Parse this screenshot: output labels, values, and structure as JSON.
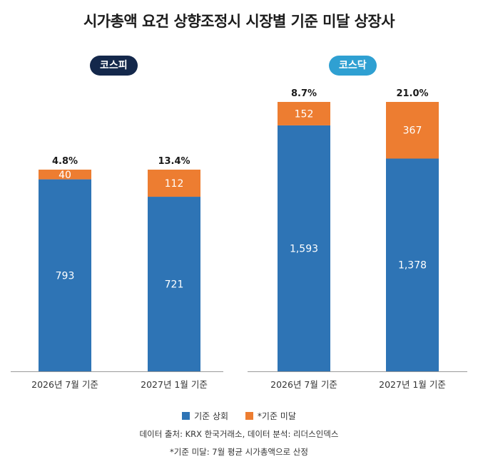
{
  "title": "시가총액 요건 상향조정시 시장별 기준 미달 상장사",
  "colors": {
    "above": "#2e74b5",
    "below": "#ed7d31",
    "kospi_pill": "#14284b",
    "kosdaq_pill": "#2fa0d2"
  },
  "chart_data": [
    {
      "type": "bar",
      "stacked": true,
      "market": "코스피",
      "categories": [
        "2026년 7월 기준",
        "2027년 1월 기준"
      ],
      "series": [
        {
          "name": "기준 상회",
          "values": [
            793,
            721
          ],
          "labels": [
            "793",
            "721"
          ]
        },
        {
          "name": "*기준 미달",
          "values": [
            40,
            112
          ],
          "labels": [
            "40",
            "112"
          ]
        }
      ],
      "totals_pct": [
        "4.8%",
        "13.4%"
      ]
    },
    {
      "type": "bar",
      "stacked": true,
      "market": "코스닥",
      "categories": [
        "2026년 7월 기준",
        "2027년 1월 기준"
      ],
      "series": [
        {
          "name": "기준 상회",
          "values": [
            1593,
            1378
          ],
          "labels": [
            "1,593",
            "1,378"
          ]
        },
        {
          "name": "*기준 미달",
          "values": [
            152,
            367
          ],
          "labels": [
            "152",
            "367"
          ]
        }
      ],
      "totals_pct": [
        "8.7%",
        "21.0%"
      ]
    }
  ],
  "legend": [
    "기준 상회",
    "*기준 미달"
  ],
  "source": "데이터 출처: KRX 한국거래소, 데이터 분석: 리더스인덱스",
  "footnote": "*기준 미달: 7월 평균 시가총액으로 산정"
}
